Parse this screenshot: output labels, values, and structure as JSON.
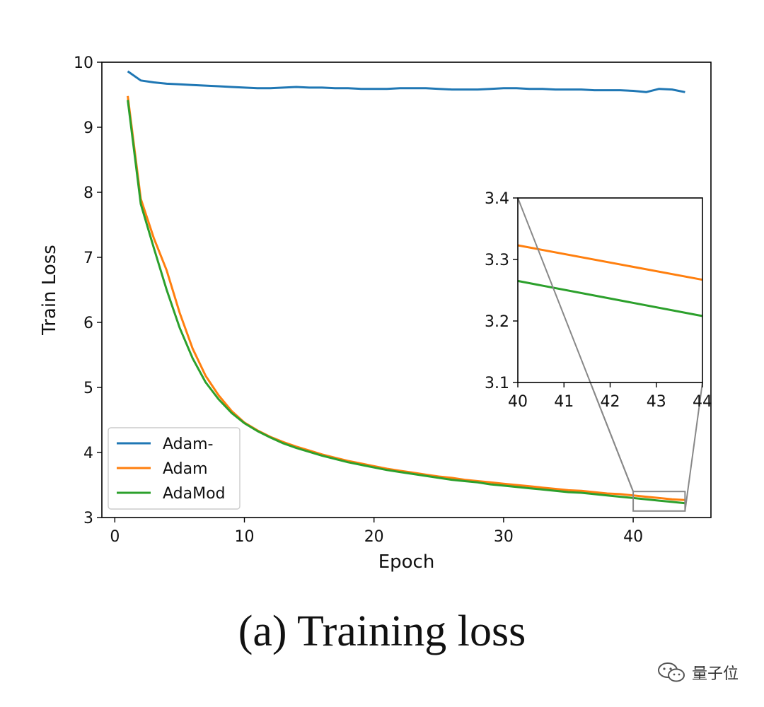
{
  "caption": "(a) Training loss",
  "watermark": {
    "text": "量子位",
    "icon": "wechat-icon"
  },
  "chart_data": {
    "type": "line",
    "xlabel": "Epoch",
    "ylabel": "Train Loss",
    "xlim": [
      -1,
      46
    ],
    "ylim": [
      3,
      10
    ],
    "xticks": [
      0,
      10,
      20,
      30,
      40
    ],
    "yticks": [
      3,
      4,
      5,
      6,
      7,
      8,
      9,
      10
    ],
    "grid": false,
    "legend_loc": "lower-left",
    "x": [
      1,
      2,
      3,
      4,
      5,
      6,
      7,
      8,
      9,
      10,
      11,
      12,
      13,
      14,
      15,
      16,
      17,
      18,
      19,
      20,
      21,
      22,
      23,
      24,
      25,
      26,
      27,
      28,
      29,
      30,
      31,
      32,
      33,
      34,
      35,
      36,
      37,
      38,
      39,
      40,
      41,
      42,
      43,
      44
    ],
    "series": [
      {
        "name": "Adam-",
        "color": "#1f77b4",
        "values": [
          9.86,
          9.72,
          9.69,
          9.67,
          9.66,
          9.65,
          9.64,
          9.63,
          9.62,
          9.61,
          9.6,
          9.6,
          9.61,
          9.62,
          9.61,
          9.61,
          9.6,
          9.6,
          9.59,
          9.59,
          9.59,
          9.6,
          9.6,
          9.6,
          9.59,
          9.58,
          9.58,
          9.58,
          9.59,
          9.6,
          9.6,
          9.59,
          9.59,
          9.58,
          9.58,
          9.58,
          9.57,
          9.57,
          9.57,
          9.56,
          9.54,
          9.59,
          9.58,
          9.54
        ]
      },
      {
        "name": "Adam",
        "color": "#ff7f0e",
        "values": [
          9.48,
          7.9,
          7.3,
          6.8,
          6.15,
          5.6,
          5.18,
          4.88,
          4.64,
          4.46,
          4.34,
          4.24,
          4.16,
          4.09,
          4.03,
          3.97,
          3.92,
          3.87,
          3.83,
          3.79,
          3.75,
          3.72,
          3.69,
          3.66,
          3.63,
          3.61,
          3.58,
          3.56,
          3.54,
          3.52,
          3.5,
          3.48,
          3.46,
          3.44,
          3.42,
          3.41,
          3.39,
          3.37,
          3.36,
          3.34,
          3.32,
          3.3,
          3.28,
          3.27
        ]
      },
      {
        "name": "AdaMod",
        "color": "#2ca02c",
        "values": [
          9.42,
          7.82,
          7.15,
          6.5,
          5.92,
          5.45,
          5.08,
          4.82,
          4.61,
          4.45,
          4.33,
          4.23,
          4.14,
          4.07,
          4.01,
          3.95,
          3.9,
          3.85,
          3.81,
          3.77,
          3.73,
          3.7,
          3.67,
          3.64,
          3.61,
          3.58,
          3.56,
          3.54,
          3.51,
          3.49,
          3.47,
          3.45,
          3.43,
          3.41,
          3.39,
          3.38,
          3.36,
          3.34,
          3.32,
          3.3,
          3.28,
          3.26,
          3.24,
          3.22
        ]
      }
    ],
    "zoom_box": {
      "x": [
        40,
        44
      ],
      "y": [
        3.1,
        3.4
      ]
    },
    "inset": {
      "xlim": [
        40,
        44
      ],
      "ylim": [
        3.1,
        3.4
      ],
      "xticks": [
        40,
        41,
        42,
        43,
        44
      ],
      "yticks": [
        3.1,
        3.2,
        3.3,
        3.4
      ],
      "lines": [
        {
          "name": "Adam",
          "x": [
            40,
            44
          ],
          "y": [
            3.323,
            3.267
          ]
        },
        {
          "name": "AdaMod",
          "x": [
            40,
            44
          ],
          "y": [
            3.265,
            3.208
          ]
        }
      ]
    }
  }
}
